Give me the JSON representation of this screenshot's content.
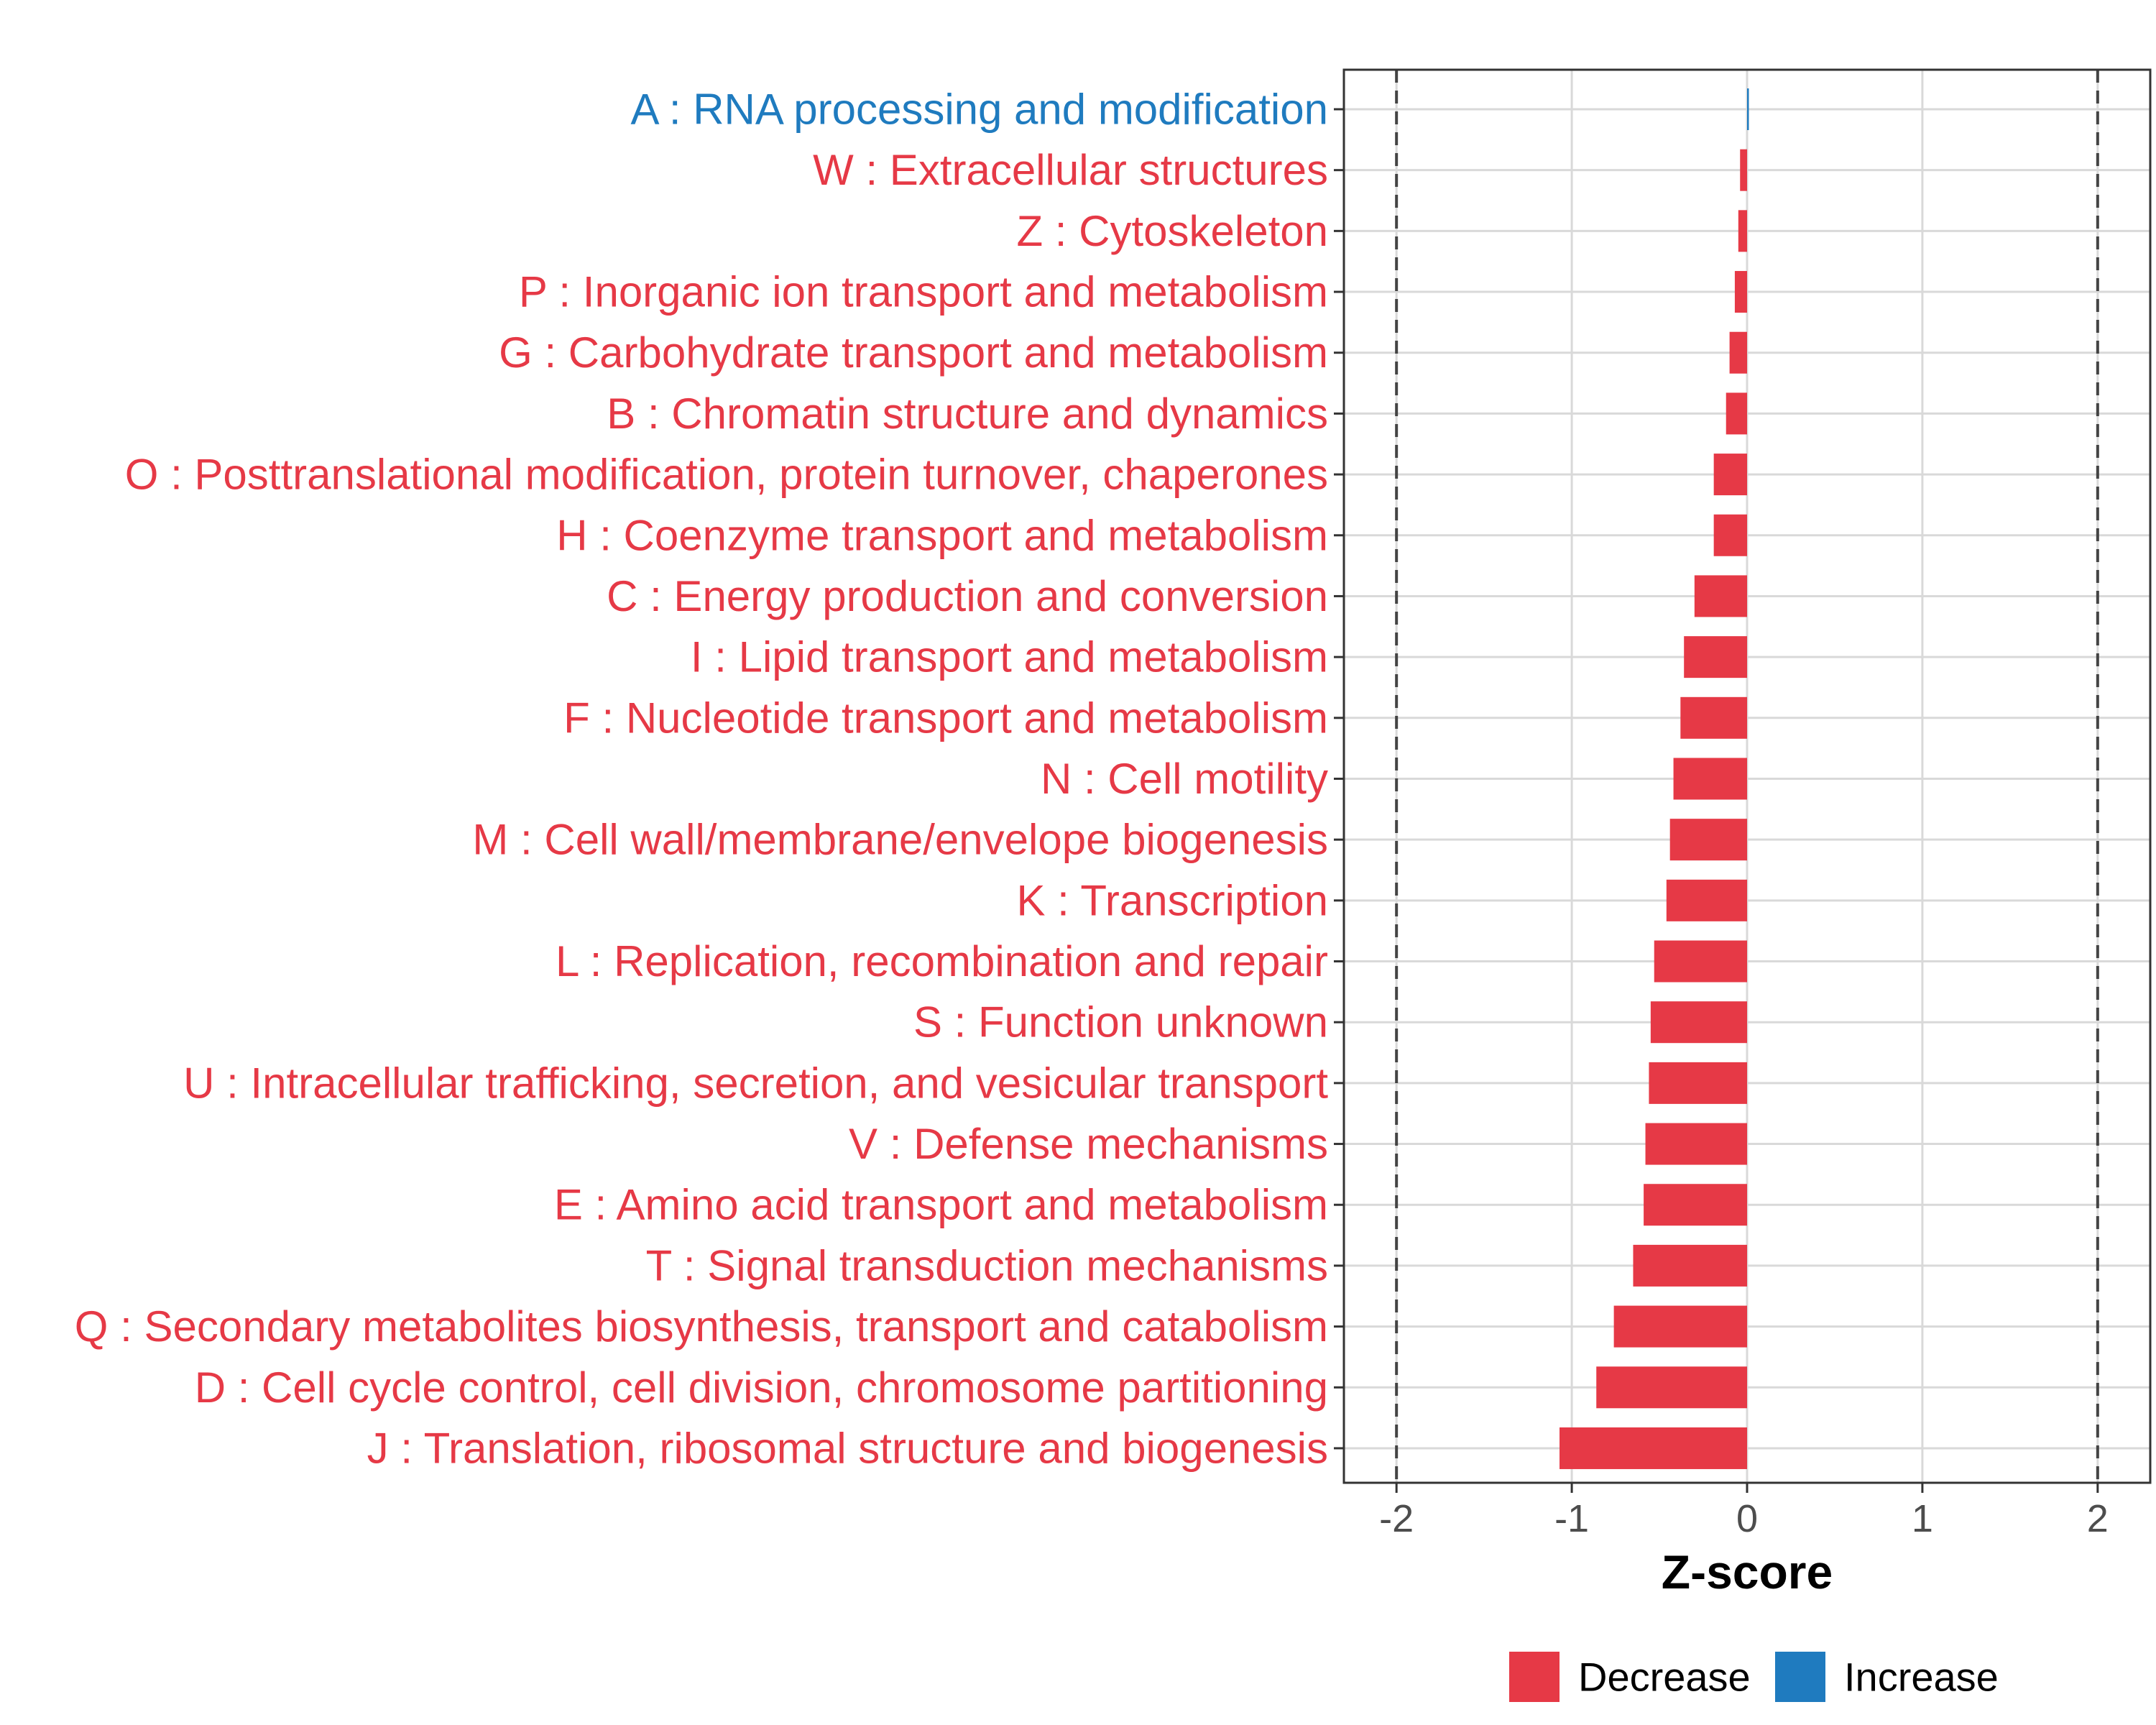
{
  "chart_data": {
    "type": "bar",
    "orientation": "horizontal",
    "xlabel": "Z-score",
    "xlim": [
      -2.3,
      2.3
    ],
    "xticks": [
      -2,
      -1,
      0,
      1,
      2
    ],
    "xtick_labels": [
      "-2",
      "-1",
      "0",
      "1",
      "2"
    ],
    "reference_lines": [
      -2,
      2
    ],
    "grid": true,
    "categories": [
      "A : RNA processing and modification",
      "W : Extracellular structures",
      "Z : Cytoskeleton",
      "P : Inorganic ion transport and metabolism",
      "G : Carbohydrate transport and metabolism",
      "B : Chromatin structure and dynamics",
      "O : Posttranslational modification, protein turnover, chaperones",
      "H : Coenzyme transport and metabolism",
      "C : Energy production and conversion",
      "I : Lipid transport and metabolism",
      "F : Nucleotide transport and metabolism",
      "N : Cell motility",
      "M : Cell wall/membrane/envelope biogenesis",
      "K : Transcription",
      "L : Replication, recombination and repair",
      "S : Function unknown",
      "U : Intracellular trafficking, secretion, and vesicular transport",
      "V : Defense mechanisms",
      "E : Amino acid transport and metabolism",
      "T : Signal transduction mechanisms",
      "Q : Secondary metabolites biosynthesis, transport and catabolism",
      "D : Cell cycle control, cell division, chromosome partitioning",
      "J : Translation, ribosomal structure and biogenesis"
    ],
    "values": [
      0.01,
      -0.04,
      -0.05,
      -0.07,
      -0.1,
      -0.12,
      -0.19,
      -0.19,
      -0.3,
      -0.36,
      -0.38,
      -0.42,
      -0.44,
      -0.46,
      -0.53,
      -0.55,
      -0.56,
      -0.58,
      -0.59,
      -0.65,
      -0.76,
      -0.86,
      -1.07
    ],
    "direction": [
      "Increase",
      "Decrease",
      "Decrease",
      "Decrease",
      "Decrease",
      "Decrease",
      "Decrease",
      "Decrease",
      "Decrease",
      "Decrease",
      "Decrease",
      "Decrease",
      "Decrease",
      "Decrease",
      "Decrease",
      "Decrease",
      "Decrease",
      "Decrease",
      "Decrease",
      "Decrease",
      "Decrease",
      "Decrease",
      "Decrease"
    ],
    "legend": {
      "position": "bottom",
      "entries": [
        {
          "label": "Decrease",
          "color": "#e63946"
        },
        {
          "label": "Increase",
          "color": "#1f7bbf"
        }
      ]
    },
    "colors": {
      "Decrease": "#e63946",
      "Increase": "#1f7bbf"
    }
  }
}
